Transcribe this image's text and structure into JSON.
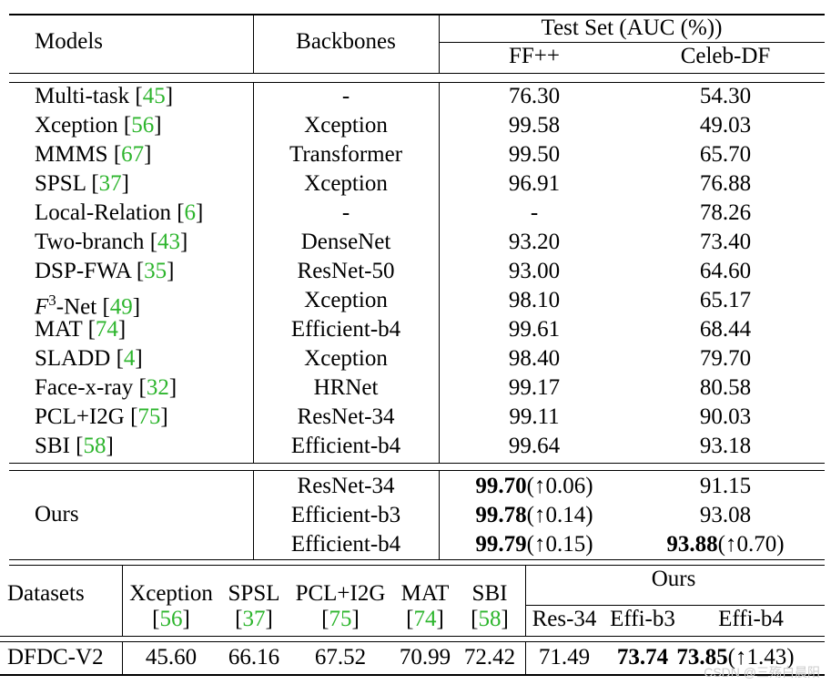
{
  "header": {
    "models": "Models",
    "backbones": "Backbones",
    "test_set": "Test Set (AUC (%))",
    "ffpp": "FF++",
    "celeb": "Celeb-DF"
  },
  "rows": [
    {
      "name": "Multi-task",
      "ref": "45",
      "backbone": "-",
      "ff": "76.30",
      "celeb": "54.30"
    },
    {
      "name": "Xception",
      "ref": "56",
      "backbone": "Xception",
      "ff": "99.58",
      "celeb": "49.03"
    },
    {
      "name": "MMMS",
      "ref": "67",
      "backbone": "Transformer",
      "ff": "99.50",
      "celeb": "65.70"
    },
    {
      "name": "SPSL",
      "ref": "37",
      "backbone": "Xception",
      "ff": "96.91",
      "celeb": "76.88"
    },
    {
      "name": "Local-Relation",
      "ref": "6",
      "backbone": "-",
      "ff": "-",
      "celeb": "78.26"
    },
    {
      "name": "Two-branch",
      "ref": "43",
      "backbone": "DenseNet",
      "ff": "93.20",
      "celeb": "73.40"
    },
    {
      "name": "DSP-FWA",
      "ref": "35",
      "backbone": "ResNet-50",
      "ff": "93.00",
      "celeb": "64.60"
    },
    {
      "name": "-Net",
      "ref": "49",
      "backbone": "Xception",
      "ff": "98.10",
      "celeb": "65.17",
      "prefix": "F",
      "sup": "3"
    },
    {
      "name": "MAT",
      "ref": "74",
      "backbone": "Efficient-b4",
      "ff": "99.61",
      "celeb": "68.44"
    },
    {
      "name": "SLADD",
      "ref": "4",
      "backbone": "Xception",
      "ff": "98.40",
      "celeb": "79.70"
    },
    {
      "name": "Face-x-ray",
      "ref": "32",
      "backbone": "HRNet",
      "ff": "99.17",
      "celeb": "80.58"
    },
    {
      "name": "PCL+I2G",
      "ref": "75",
      "backbone": "ResNet-34",
      "ff": "99.11",
      "celeb": "90.03"
    },
    {
      "name": "SBI",
      "ref": "58",
      "backbone": "Efficient-b4",
      "ff": "99.64",
      "celeb": "93.18"
    }
  ],
  "ours": {
    "label": "Ours",
    "rows": [
      {
        "backbone": "ResNet-34",
        "ff_bold": "99.70",
        "ff_gain": "(↑0.06)",
        "celeb": "91.15"
      },
      {
        "backbone": "Efficient-b3",
        "ff_bold": "99.78",
        "ff_gain": "(↑0.14)",
        "celeb": "93.08"
      },
      {
        "backbone": "Efficient-b4",
        "ff_bold": "99.79",
        "ff_gain": "(↑0.15)",
        "celeb_bold": "93.88",
        "celeb_gain": "(↑0.70)"
      }
    ]
  },
  "table2": {
    "datasets": "Datasets",
    "cols": [
      {
        "name": "Xception",
        "ref": "56"
      },
      {
        "name": "SPSL",
        "ref": "37"
      },
      {
        "name": "PCL+I2G",
        "ref": "75"
      },
      {
        "name": "MAT",
        "ref": "74"
      },
      {
        "name": "SBI",
        "ref": "58"
      }
    ],
    "ours": "Ours",
    "ours_cols": [
      "Res-34",
      "Effi-b3",
      "Effi-b4"
    ],
    "row": {
      "name": "DFDC-V2",
      "values": [
        "45.60",
        "66.16",
        "67.52",
        "70.99",
        "72.42"
      ],
      "ours_plain": "71.49",
      "ours_bold1": "73.74",
      "ours_bold2": "73.85",
      "ours_gain": "(↑1.43)"
    }
  },
  "watermark": "CSDN @三殇白晨阳"
}
